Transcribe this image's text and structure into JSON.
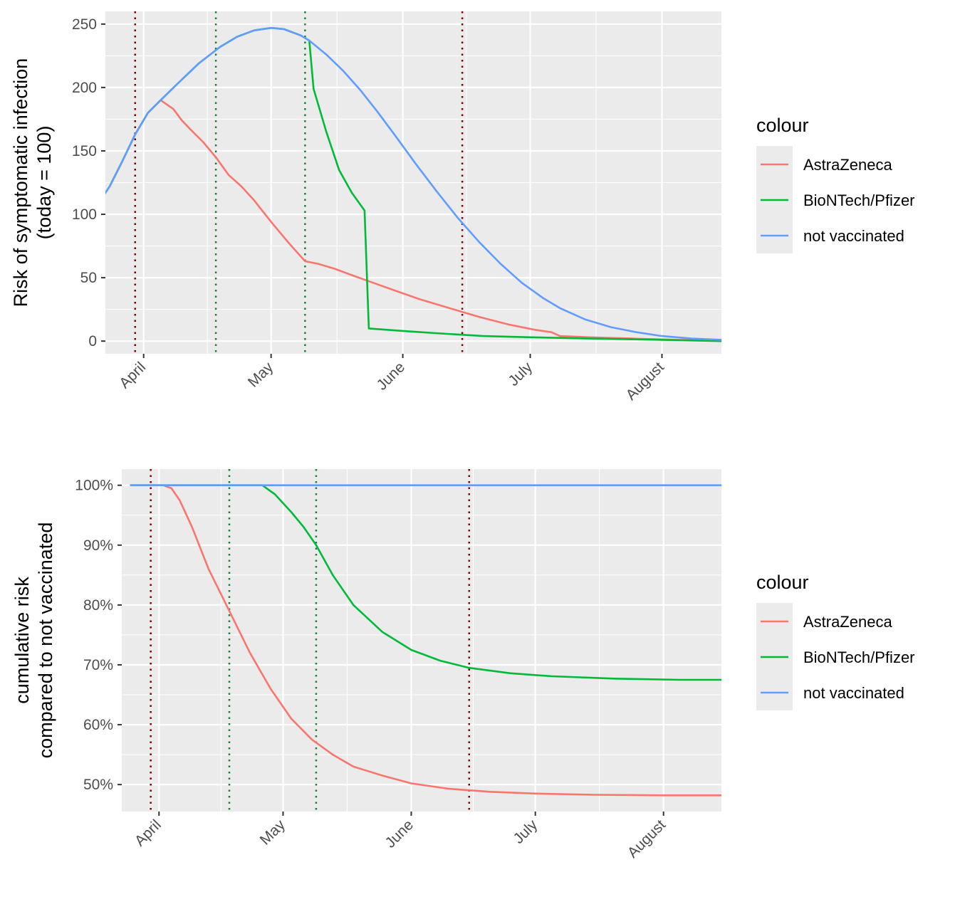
{
  "chart_data": [
    {
      "type": "line",
      "ylabel_lines": [
        "Risk of symptomatic infection",
        "(today = 100)"
      ],
      "xlabel": "",
      "x_unit": "date (2021)",
      "xlim": [
        "2021-03-23",
        "2021-08-15"
      ],
      "ylim": [
        -10,
        260
      ],
      "yticks": [
        0,
        50,
        100,
        150,
        200,
        250
      ],
      "ytick_labels": [
        "0",
        "50",
        "100",
        "150",
        "200",
        "250"
      ],
      "xticks": [
        "2021-04-01",
        "2021-05-01",
        "2021-06-01",
        "2021-07-01",
        "2021-08-01"
      ],
      "xtick_labels": [
        "April",
        "May",
        "June",
        "July",
        "August"
      ],
      "grid": true,
      "legend": {
        "title": "colour",
        "position": "right"
      },
      "vlines": [
        {
          "x": "2021-03-30",
          "color": "#7f0000",
          "style": "dotted"
        },
        {
          "x": "2021-04-18",
          "color": "#1a7f3c",
          "style": "dotted"
        },
        {
          "x": "2021-05-09",
          "color": "#1a7f3c",
          "style": "dotted"
        },
        {
          "x": "2021-06-15",
          "color": "#7f0000",
          "style": "dotted"
        }
      ],
      "series": [
        {
          "name": "AstraZeneca",
          "color": "#F8766D",
          "points": [
            [
              "2021-03-21",
              107
            ],
            [
              "2021-03-24",
              122
            ],
            [
              "2021-03-27",
              142
            ],
            [
              "2021-03-30",
              163
            ],
            [
              "2021-04-02",
              180
            ],
            [
              "2021-04-05",
              190
            ],
            [
              "2021-04-08",
              183
            ],
            [
              "2021-04-10",
              174
            ],
            [
              "2021-04-12",
              167
            ],
            [
              "2021-04-15",
              157
            ],
            [
              "2021-04-18",
              145
            ],
            [
              "2021-04-21",
              131
            ],
            [
              "2021-04-24",
              122
            ],
            [
              "2021-04-27",
              111
            ],
            [
              "2021-05-01",
              94
            ],
            [
              "2021-05-05",
              78
            ],
            [
              "2021-05-09",
              63
            ],
            [
              "2021-05-12",
              61
            ],
            [
              "2021-05-16",
              57
            ],
            [
              "2021-05-20",
              52
            ],
            [
              "2021-05-25",
              46
            ],
            [
              "2021-05-30",
              40
            ],
            [
              "2021-06-05",
              33
            ],
            [
              "2021-06-12",
              26
            ],
            [
              "2021-06-19",
              19
            ],
            [
              "2021-06-26",
              13
            ],
            [
              "2021-07-02",
              9
            ],
            [
              "2021-07-06",
              7
            ],
            [
              "2021-07-08",
              4
            ],
            [
              "2021-07-15",
              3
            ],
            [
              "2021-07-25",
              2
            ],
            [
              "2021-08-05",
              1
            ],
            [
              "2021-08-15",
              1
            ]
          ]
        },
        {
          "name": "BioNTech/Pfizer",
          "color": "#00BA38",
          "points": [
            [
              "2021-03-21",
              107
            ],
            [
              "2021-03-24",
              122
            ],
            [
              "2021-03-27",
              142
            ],
            [
              "2021-03-30",
              163
            ],
            [
              "2021-04-02",
              180
            ],
            [
              "2021-04-05",
              190
            ],
            [
              "2021-04-09",
              203
            ],
            [
              "2021-04-14",
              219
            ],
            [
              "2021-04-19",
              232
            ],
            [
              "2021-04-23",
              240
            ],
            [
              "2021-04-27",
              245
            ],
            [
              "2021-05-01",
              247
            ],
            [
              "2021-05-04",
              246
            ],
            [
              "2021-05-08",
              241
            ],
            [
              "2021-05-10",
              237
            ],
            [
              "2021-05-11",
              199
            ],
            [
              "2021-05-14",
              165
            ],
            [
              "2021-05-17",
              135
            ],
            [
              "2021-05-20",
              117
            ],
            [
              "2021-05-23",
              103
            ],
            [
              "2021-05-24",
              10
            ],
            [
              "2021-06-01",
              8
            ],
            [
              "2021-06-10",
              6
            ],
            [
              "2021-06-20",
              4
            ],
            [
              "2021-07-01",
              3
            ],
            [
              "2021-07-15",
              2
            ],
            [
              "2021-08-01",
              1
            ],
            [
              "2021-08-15",
              0
            ]
          ]
        },
        {
          "name": "not vaccinated",
          "color": "#619CFF",
          "points": [
            [
              "2021-03-21",
              107
            ],
            [
              "2021-03-24",
              122
            ],
            [
              "2021-03-27",
              142
            ],
            [
              "2021-03-30",
              163
            ],
            [
              "2021-04-02",
              180
            ],
            [
              "2021-04-05",
              190
            ],
            [
              "2021-04-09",
              203
            ],
            [
              "2021-04-14",
              219
            ],
            [
              "2021-04-19",
              232
            ],
            [
              "2021-04-23",
              240
            ],
            [
              "2021-04-27",
              245
            ],
            [
              "2021-05-01",
              247
            ],
            [
              "2021-05-04",
              246
            ],
            [
              "2021-05-08",
              241
            ],
            [
              "2021-05-10",
              237
            ],
            [
              "2021-05-14",
              226
            ],
            [
              "2021-05-18",
              213
            ],
            [
              "2021-05-22",
              198
            ],
            [
              "2021-05-26",
              181
            ],
            [
              "2021-05-30",
              163
            ],
            [
              "2021-06-04",
              140
            ],
            [
              "2021-06-09",
              118
            ],
            [
              "2021-06-14",
              97
            ],
            [
              "2021-06-19",
              78
            ],
            [
              "2021-06-24",
              61
            ],
            [
              "2021-06-29",
              46
            ],
            [
              "2021-07-04",
              34
            ],
            [
              "2021-07-08",
              26
            ],
            [
              "2021-07-14",
              17
            ],
            [
              "2021-07-20",
              11
            ],
            [
              "2021-07-26",
              7
            ],
            [
              "2021-08-01",
              4
            ],
            [
              "2021-08-08",
              2
            ],
            [
              "2021-08-15",
              1
            ]
          ]
        }
      ]
    },
    {
      "type": "line",
      "ylabel_lines": [
        "cumulative risk",
        "compared to not vaccinated"
      ],
      "xlabel": "",
      "x_unit": "date (2021)",
      "xlim": [
        "2021-03-23",
        "2021-08-15"
      ],
      "ylim": [
        45.5,
        102.7
      ],
      "yticks": [
        50,
        60,
        70,
        80,
        90,
        100
      ],
      "ytick_labels": [
        "50%",
        "60%",
        "70%",
        "80%",
        "90%",
        "100%"
      ],
      "xticks": [
        "2021-04-01",
        "2021-05-01",
        "2021-06-01",
        "2021-07-01",
        "2021-08-01"
      ],
      "xtick_labels": [
        "April",
        "May",
        "June",
        "July",
        "August"
      ],
      "grid": true,
      "legend": {
        "title": "colour",
        "position": "right"
      },
      "vlines": [
        {
          "x": "2021-03-30",
          "color": "#7f0000",
          "style": "dotted"
        },
        {
          "x": "2021-04-18",
          "color": "#1a7f3c",
          "style": "dotted"
        },
        {
          "x": "2021-05-09",
          "color": "#1a7f3c",
          "style": "dotted"
        },
        {
          "x": "2021-06-15",
          "color": "#7f0000",
          "style": "dotted"
        }
      ],
      "series": [
        {
          "name": "AstraZeneca",
          "color": "#F8766D",
          "points": [
            [
              "2021-03-25",
              100
            ],
            [
              "2021-04-02",
              100
            ],
            [
              "2021-04-04",
              99.5
            ],
            [
              "2021-04-06",
              97.5
            ],
            [
              "2021-04-09",
              93
            ],
            [
              "2021-04-13",
              86
            ],
            [
              "2021-04-18",
              79
            ],
            [
              "2021-04-23",
              72
            ],
            [
              "2021-04-28",
              66
            ],
            [
              "2021-05-03",
              61
            ],
            [
              "2021-05-08",
              57.5
            ],
            [
              "2021-05-13",
              55
            ],
            [
              "2021-05-18",
              53
            ],
            [
              "2021-05-25",
              51.5
            ],
            [
              "2021-06-01",
              50.2
            ],
            [
              "2021-06-10",
              49.3
            ],
            [
              "2021-06-20",
              48.8
            ],
            [
              "2021-07-01",
              48.5
            ],
            [
              "2021-07-15",
              48.3
            ],
            [
              "2021-08-01",
              48.2
            ],
            [
              "2021-08-15",
              48.2
            ]
          ]
        },
        {
          "name": "BioNTech/Pfizer",
          "color": "#00BA38",
          "points": [
            [
              "2021-03-25",
              100
            ],
            [
              "2021-04-26",
              100
            ],
            [
              "2021-04-29",
              98.5
            ],
            [
              "2021-05-03",
              95.5
            ],
            [
              "2021-05-06",
              93
            ],
            [
              "2021-05-09",
              90
            ],
            [
              "2021-05-13",
              85
            ],
            [
              "2021-05-18",
              80
            ],
            [
              "2021-05-25",
              75.5
            ],
            [
              "2021-06-01",
              72.5
            ],
            [
              "2021-06-08",
              70.7
            ],
            [
              "2021-06-15",
              69.5
            ],
            [
              "2021-06-25",
              68.6
            ],
            [
              "2021-07-05",
              68.1
            ],
            [
              "2021-07-20",
              67.7
            ],
            [
              "2021-08-05",
              67.5
            ],
            [
              "2021-08-15",
              67.5
            ]
          ]
        },
        {
          "name": "not vaccinated",
          "color": "#619CFF",
          "points": [
            [
              "2021-03-25",
              100
            ],
            [
              "2021-08-15",
              100
            ]
          ]
        }
      ]
    }
  ]
}
